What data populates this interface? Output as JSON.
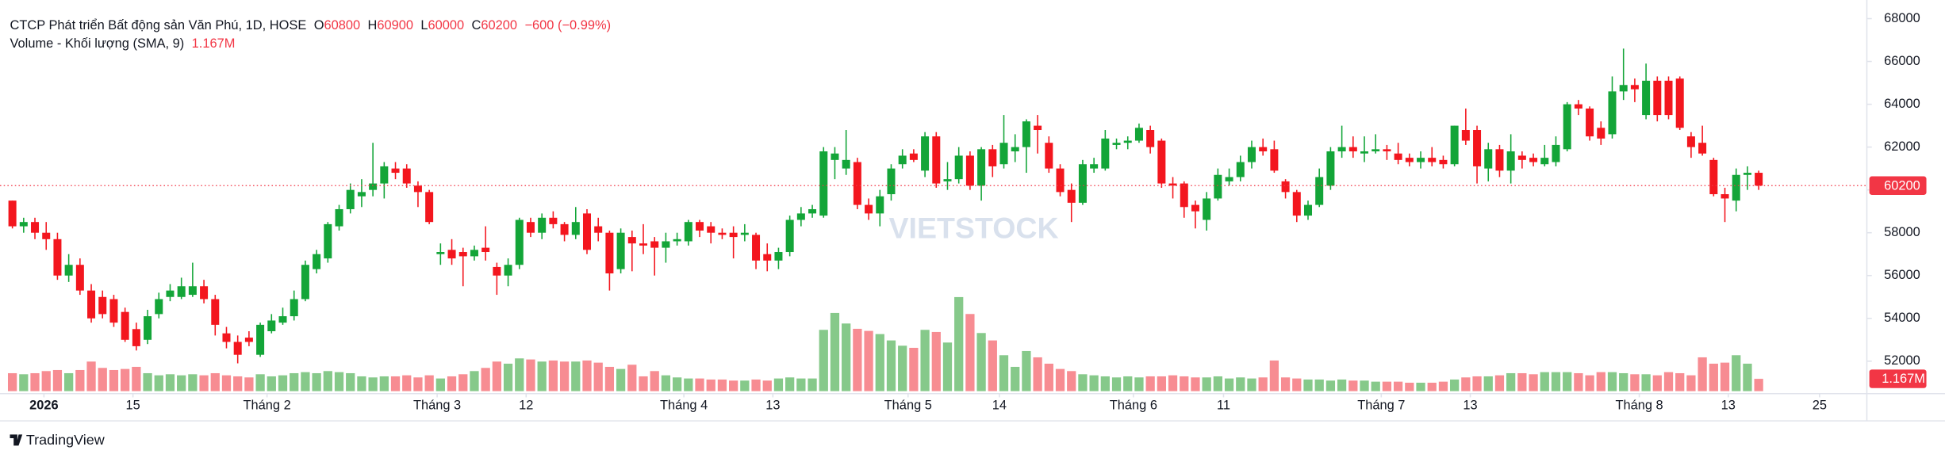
{
  "chart_data": {
    "type": "candlestick",
    "title": "CTCP Phát triển Bất động sản Văn Phú, 1D, HOSE",
    "ohlc_labels": [
      "O",
      "H",
      "L",
      "C"
    ],
    "last_ohlc": [
      60800,
      60900,
      60000,
      60200
    ],
    "change": {
      "value": -600,
      "label": "−600 (−0.99%)"
    },
    "volume_title": "Volume - Khối lượng (SMA, 9)",
    "last_volume": {
      "value": 1.167,
      "label": "1.167M"
    },
    "last_price": 60200,
    "watermark": "VIETSTOCK",
    "logo": "TradingView",
    "up_color": "#13a538",
    "down_color": "#f3161e",
    "volume_up_color": "#86c98a",
    "volume_down_color": "#f78c92",
    "price_line_color": "#f23645",
    "grid": false,
    "xlim": [
      -1.1,
      164.6
    ],
    "xticks": [
      {
        "value": 2.8,
        "label": "2026"
      },
      {
        "value": 10.7,
        "label": "15"
      },
      {
        "value": 22.6,
        "label": "Tháng 2"
      },
      {
        "value": 37.7,
        "label": "Tháng 3"
      },
      {
        "value": 45.6,
        "label": "12"
      },
      {
        "value": 59.6,
        "label": "Tháng 4"
      },
      {
        "value": 67.5,
        "label": "13"
      },
      {
        "value": 79.5,
        "label": "Tháng 5"
      },
      {
        "value": 87.6,
        "label": "14"
      },
      {
        "value": 99.5,
        "label": "Tháng 6"
      },
      {
        "value": 107.5,
        "label": "11"
      },
      {
        "value": 121.5,
        "label": "Tháng 7"
      },
      {
        "value": 129.4,
        "label": "13"
      },
      {
        "value": 144.4,
        "label": "Tháng 8"
      },
      {
        "value": 152.3,
        "label": "13"
      },
      {
        "value": 160.4,
        "label": "25"
      }
    ],
    "ylim": [
      50600,
      68870
    ],
    "yticks": [
      52000,
      54000,
      56000,
      58000,
      60000,
      62000,
      64000,
      66000,
      68000
    ],
    "candles": [
      [
        59500,
        59500,
        58200,
        58300
      ],
      [
        58300,
        58700,
        58000,
        58500
      ],
      [
        58500,
        58700,
        57700,
        58000
      ],
      [
        58000,
        58500,
        57200,
        57700
      ],
      [
        57700,
        58000,
        55800,
        56000
      ],
      [
        56000,
        57000,
        55700,
        56500
      ],
      [
        56500,
        56800,
        55100,
        55300
      ],
      [
        55300,
        55600,
        53800,
        54000
      ],
      [
        55000,
        55300,
        54000,
        54200
      ],
      [
        54900,
        55100,
        53600,
        53800
      ],
      [
        54300,
        54500,
        52900,
        53000
      ],
      [
        53500,
        53800,
        52500,
        52700
      ],
      [
        53000,
        54400,
        52800,
        54100
      ],
      [
        54200,
        55200,
        54000,
        54900
      ],
      [
        55000,
        55600,
        54800,
        55300
      ],
      [
        55000,
        55900,
        54900,
        55500
      ],
      [
        55100,
        56600,
        55000,
        55500
      ],
      [
        55500,
        55800,
        54700,
        54900
      ],
      [
        54900,
        55100,
        53200,
        53700
      ],
      [
        53300,
        53600,
        52600,
        52900
      ],
      [
        52900,
        53200,
        51900,
        52300
      ],
      [
        53100,
        53400,
        52700,
        52900
      ],
      [
        52300,
        53800,
        52200,
        53700
      ],
      [
        53400,
        54200,
        53300,
        53900
      ],
      [
        53800,
        54500,
        53700,
        54100
      ],
      [
        54100,
        55300,
        53900,
        54900
      ],
      [
        54900,
        56700,
        54800,
        56500
      ],
      [
        56300,
        57200,
        56100,
        57000
      ],
      [
        56800,
        58500,
        56600,
        58400
      ],
      [
        58300,
        59300,
        58100,
        59100
      ],
      [
        59100,
        60300,
        58900,
        60000
      ],
      [
        59700,
        60500,
        59200,
        59900
      ],
      [
        60000,
        62200,
        59700,
        60300
      ],
      [
        60300,
        61300,
        59600,
        61100
      ],
      [
        61000,
        61300,
        60500,
        60800
      ],
      [
        61000,
        61200,
        60100,
        60300
      ],
      [
        60200,
        60400,
        59200,
        59900
      ],
      [
        59900,
        60000,
        58400,
        58500
      ],
      [
        57000,
        57500,
        56500,
        57100
      ],
      [
        57200,
        57700,
        56500,
        56800
      ],
      [
        57100,
        57300,
        55500,
        56900
      ],
      [
        56900,
        57400,
        56700,
        57200
      ],
      [
        57300,
        58300,
        56700,
        57100
      ],
      [
        56400,
        56600,
        55100,
        56000
      ],
      [
        56000,
        56800,
        55500,
        56500
      ],
      [
        56500,
        58700,
        56300,
        58600
      ],
      [
        58500,
        58700,
        57800,
        58000
      ],
      [
        58000,
        58900,
        57700,
        58700
      ],
      [
        58700,
        59000,
        58200,
        58400
      ],
      [
        58400,
        58500,
        57600,
        57900
      ],
      [
        57900,
        59200,
        57700,
        58500
      ],
      [
        58900,
        59100,
        57000,
        57200
      ],
      [
        58300,
        58700,
        57600,
        58000
      ],
      [
        58000,
        58100,
        55300,
        56100
      ],
      [
        56300,
        58200,
        56100,
        58000
      ],
      [
        57800,
        58100,
        56200,
        57500
      ],
      [
        57500,
        58400,
        57000,
        57400
      ],
      [
        57600,
        57800,
        56000,
        57300
      ],
      [
        57300,
        58000,
        56600,
        57600
      ],
      [
        57600,
        58000,
        57400,
        57700
      ],
      [
        57600,
        58600,
        57400,
        58500
      ],
      [
        58500,
        58600,
        57800,
        58100
      ],
      [
        58300,
        58500,
        57500,
        58000
      ],
      [
        58000,
        58200,
        57700,
        57900
      ],
      [
        58000,
        58300,
        56800,
        57800
      ],
      [
        57900,
        58400,
        57600,
        58000
      ],
      [
        57900,
        58000,
        56300,
        56700
      ],
      [
        57000,
        57500,
        56200,
        56700
      ],
      [
        56700,
        57300,
        56300,
        57100
      ],
      [
        57100,
        58800,
        56900,
        58600
      ],
      [
        58600,
        59200,
        58300,
        58900
      ],
      [
        58900,
        59300,
        58700,
        59100
      ],
      [
        58800,
        62000,
        58700,
        61800
      ],
      [
        61400,
        62000,
        60500,
        61700
      ],
      [
        61000,
        62800,
        60700,
        61400
      ],
      [
        61300,
        61500,
        59100,
        59300
      ],
      [
        59300,
        59600,
        58600,
        58900
      ],
      [
        58900,
        60000,
        58300,
        59700
      ],
      [
        59800,
        61200,
        59500,
        61000
      ],
      [
        61200,
        61900,
        61000,
        61600
      ],
      [
        61700,
        61900,
        61300,
        61400
      ],
      [
        60900,
        62700,
        60600,
        62500
      ],
      [
        62500,
        62700,
        60100,
        60300
      ],
      [
        60400,
        61300,
        60000,
        60500
      ],
      [
        60500,
        62000,
        60300,
        61600
      ],
      [
        61600,
        61800,
        60000,
        60200
      ],
      [
        60200,
        62000,
        59500,
        61900
      ],
      [
        61900,
        62100,
        60600,
        61100
      ],
      [
        61200,
        63500,
        61000,
        62200
      ],
      [
        61800,
        62600,
        61300,
        62000
      ],
      [
        62000,
        63300,
        60800,
        63200
      ],
      [
        63000,
        63500,
        61700,
        62800
      ],
      [
        62200,
        62500,
        60800,
        61000
      ],
      [
        61000,
        61200,
        59700,
        59900
      ],
      [
        60000,
        60300,
        58500,
        59400
      ],
      [
        59400,
        61400,
        59300,
        61200
      ],
      [
        61000,
        61500,
        60800,
        61200
      ],
      [
        61000,
        62800,
        60900,
        62400
      ],
      [
        62100,
        62400,
        61900,
        62200
      ],
      [
        62200,
        62500,
        61900,
        62300
      ],
      [
        62300,
        63100,
        62200,
        62900
      ],
      [
        62800,
        63000,
        61700,
        62000
      ],
      [
        62300,
        62400,
        60100,
        60300
      ],
      [
        60300,
        60600,
        59600,
        60200
      ],
      [
        60300,
        60400,
        58700,
        59200
      ],
      [
        59300,
        59500,
        58200,
        59000
      ],
      [
        58600,
        59900,
        58100,
        59600
      ],
      [
        59600,
        61000,
        59500,
        60700
      ],
      [
        60400,
        61000,
        60200,
        60600
      ],
      [
        60600,
        61600,
        60400,
        61300
      ],
      [
        61300,
        62300,
        61000,
        62000
      ],
      [
        62000,
        62400,
        61600,
        61800
      ],
      [
        61900,
        62300,
        60800,
        60900
      ],
      [
        60400,
        60500,
        59600,
        59900
      ],
      [
        59900,
        60000,
        58500,
        58800
      ],
      [
        58800,
        59500,
        58600,
        59300
      ],
      [
        59300,
        61000,
        59200,
        60600
      ],
      [
        60200,
        62000,
        60000,
        61800
      ],
      [
        61800,
        63000,
        61500,
        62000
      ],
      [
        62000,
        62500,
        61500,
        61800
      ],
      [
        61700,
        62500,
        61300,
        61800
      ],
      [
        61800,
        62600,
        61700,
        61900
      ],
      [
        61900,
        62100,
        61400,
        61800
      ],
      [
        61700,
        62200,
        61200,
        61400
      ],
      [
        61500,
        61700,
        61100,
        61300
      ],
      [
        61300,
        61800,
        61000,
        61500
      ],
      [
        61500,
        62000,
        61100,
        61300
      ],
      [
        61400,
        61600,
        61000,
        61200
      ],
      [
        61200,
        63000,
        61100,
        63000
      ],
      [
        62800,
        63800,
        62100,
        62300
      ],
      [
        62800,
        63000,
        60300,
        61100
      ],
      [
        61000,
        62200,
        60400,
        61900
      ],
      [
        61900,
        62100,
        60600,
        60900
      ],
      [
        60900,
        62600,
        60300,
        61800
      ],
      [
        61600,
        61800,
        61000,
        61400
      ],
      [
        61500,
        61700,
        61100,
        61300
      ],
      [
        61200,
        62100,
        61100,
        61500
      ],
      [
        61300,
        62500,
        61100,
        62100
      ],
      [
        61900,
        64100,
        61800,
        64000
      ],
      [
        64000,
        64200,
        63500,
        63800
      ],
      [
        63800,
        63900,
        62300,
        62500
      ],
      [
        62900,
        63200,
        62100,
        62400
      ],
      [
        62600,
        65300,
        62400,
        64600
      ],
      [
        64600,
        66600,
        64200,
        64900
      ],
      [
        64900,
        65200,
        64100,
        64700
      ],
      [
        63500,
        65900,
        63300,
        65100
      ],
      [
        65100,
        65300,
        63200,
        63500
      ],
      [
        65100,
        65300,
        63300,
        63500
      ],
      [
        65200,
        65300,
        62800,
        62900
      ],
      [
        62500,
        62700,
        61500,
        62000
      ],
      [
        62200,
        63000,
        61600,
        61700
      ],
      [
        61400,
        61500,
        59700,
        59800
      ],
      [
        59800,
        60100,
        58500,
        59600
      ],
      [
        59500,
        61000,
        59000,
        60700
      ],
      [
        60700,
        61100,
        60000,
        60800
      ],
      [
        60800,
        60900,
        60000,
        60200
      ]
    ],
    "volumes": [
      1.7,
      1.6,
      1.7,
      1.9,
      2.0,
      1.7,
      2.0,
      2.8,
      2.2,
      2.0,
      2.1,
      2.3,
      1.7,
      1.5,
      1.6,
      1.5,
      1.6,
      1.5,
      1.7,
      1.5,
      1.4,
      1.3,
      1.6,
      1.4,
      1.5,
      1.7,
      1.8,
      1.7,
      1.9,
      1.8,
      1.7,
      1.4,
      1.3,
      1.4,
      1.4,
      1.5,
      1.3,
      1.5,
      1.2,
      1.4,
      1.6,
      1.9,
      2.2,
      2.8,
      2.6,
      3.1,
      3.0,
      2.8,
      2.9,
      2.8,
      2.8,
      2.9,
      2.7,
      2.3,
      2.1,
      2.5,
      1.4,
      1.9,
      1.5,
      1.3,
      1.2,
      1.2,
      1.1,
      1.1,
      1.0,
      1.0,
      1.1,
      1.0,
      1.2,
      1.3,
      1.2,
      1.2,
      5.8,
      7.4,
      6.4,
      5.9,
      5.7,
      5.4,
      4.8,
      4.3,
      4.1,
      5.8,
      5.6,
      4.6,
      8.9,
      7.3,
      5.5,
      4.8,
      3.4,
      2.3,
      3.8,
      3.2,
      2.6,
      2.1,
      1.9,
      1.6,
      1.5,
      1.4,
      1.3,
      1.4,
      1.3,
      1.4,
      1.4,
      1.5,
      1.4,
      1.3,
      1.3,
      1.4,
      1.2,
      1.3,
      1.2,
      1.3,
      2.9,
      1.3,
      1.2,
      1.1,
      1.1,
      1.0,
      1.1,
      1.0,
      1.0,
      0.9,
      0.9,
      0.9,
      0.8,
      0.8,
      0.8,
      0.9,
      1.1,
      1.3,
      1.4,
      1.4,
      1.5,
      1.7,
      1.7,
      1.6,
      1.8,
      1.8,
      1.8,
      1.7,
      1.5,
      1.8,
      1.8,
      1.7,
      1.6,
      1.6,
      1.5,
      1.8,
      1.7,
      1.5,
      3.2,
      2.6,
      2.7,
      3.4,
      2.6,
      1.167
    ]
  }
}
